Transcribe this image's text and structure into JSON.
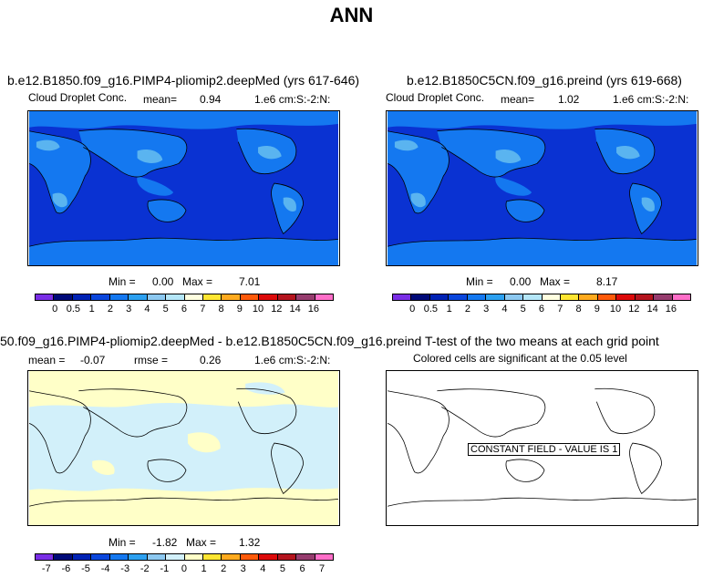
{
  "title": "ANN",
  "panels": {
    "p1": {
      "title": "b.e12.B1850.f09_g16.PIMP4-pliomip2.deepMed (yrs 617-646)",
      "var": "Cloud Droplet Conc.",
      "mean_label": "mean=",
      "mean": "0.94",
      "units": "1.e6 cm:S:-2:N:",
      "min_label": "Min =",
      "min": "0.00",
      "max_label": "Max =",
      "max": "7.01",
      "colorbar_ticks": [
        "0",
        "0.5",
        "1",
        "2",
        "3",
        "4",
        "5",
        "6",
        "7",
        "8",
        "9",
        "10",
        "12",
        "14",
        "16"
      ]
    },
    "p2": {
      "title": "b.e12.B1850C5CN.f09_g16.preind (yrs 619-668)",
      "var": "Cloud Droplet Conc.",
      "mean_label": "mean=",
      "mean": "1.02",
      "units": "1.e6 cm:S:-2:N:",
      "min_label": "Min =",
      "min": "0.00",
      "max_label": "Max =",
      "max": "8.17",
      "colorbar_ticks": [
        "0",
        "0.5",
        "1",
        "2",
        "3",
        "4",
        "5",
        "6",
        "7",
        "8",
        "9",
        "10",
        "12",
        "14",
        "16"
      ]
    },
    "p3": {
      "title": "50.f09_g16.PIMP4-pliomip2.deepMed - b.e12.B1850C5CN.f09_g16.preind",
      "mean_label": "mean =",
      "mean": "-0.07",
      "rmse_label": "rmse =",
      "rmse": "0.26",
      "units": "1.e6 cm:S:-2:N:",
      "min_label": "Min =",
      "min": "-1.82",
      "max_label": "Max =",
      "max": "1.32",
      "colorbar_ticks": [
        "-7",
        "-6",
        "-5",
        "-4",
        "-3",
        "-2",
        "-1",
        "0",
        "1",
        "2",
        "3",
        "4",
        "5",
        "6",
        "7"
      ]
    },
    "p4": {
      "title": "T-test of the two means at each grid point",
      "subtitle": "Colored cells are significant at the 0.05 level",
      "note": "CONSTANT FIELD - VALUE IS 1"
    }
  },
  "colors": {
    "abs_colorbar": [
      "#7a2ee6",
      "#000a78",
      "#0022b4",
      "#0a46dc",
      "#1478f0",
      "#2ca0f0",
      "#8cc8f0",
      "#b4e6f8",
      "#ffffe0",
      "#ffe632",
      "#ffaa1e",
      "#ff5a0a",
      "#dc0a0a",
      "#b4141e",
      "#963c6e",
      "#ff6ec8"
    ],
    "diff_colorbar": [
      "#7a2ee6",
      "#000a78",
      "#0022b4",
      "#0a46dc",
      "#1478f0",
      "#2ca0f0",
      "#8cc8f0",
      "#d2f0fa",
      "#ffffc8",
      "#ffe632",
      "#ffaa1e",
      "#ff5a0a",
      "#dc0a0a",
      "#b4141e",
      "#963c6e",
      "#ff6ec8"
    ],
    "ocean_abs": "#0a32d2",
    "land_abs": "#1478f0",
    "land_hi": "#5ab4f0",
    "diff_pos": "#ffffc8",
    "diff_neg": "#d2f0fa"
  }
}
